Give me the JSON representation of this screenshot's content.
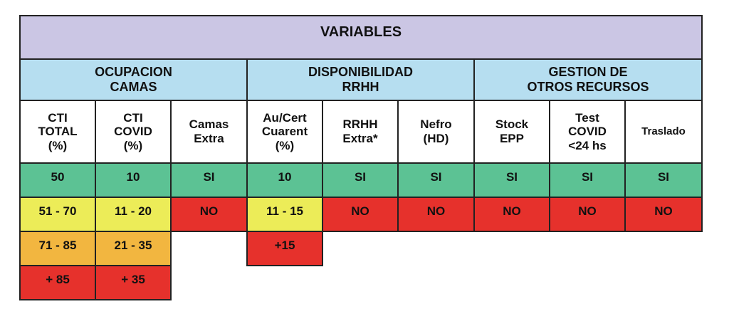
{
  "title": "VARIABLES",
  "groups": {
    "ocupacion": "OCUPACION\nCAMAS",
    "disponibilidad": "DISPONIBILIDAD\nRRHH",
    "gestion": "GESTION DE\nOTROS RECURSOS"
  },
  "columns": {
    "cti_total": "CTI\nTOTAL\n(%)",
    "cti_covid": "CTI\nCOVID\n(%)",
    "camas_extra": "Camas\nExtra",
    "au_cert": "Au/Cert\nCuarent\n(%)",
    "rrhh_extra": "RRHH\nExtra*",
    "nefro": "Nefro\n(HD)",
    "stock_epp": "Stock\nEPP",
    "test_covid": "Test\nCOVID\n<24 hs",
    "traslado": "Traslado"
  },
  "rows": {
    "green": {
      "cti_total": "50",
      "cti_covid": "10",
      "camas_extra": "SI",
      "au_cert": "10",
      "rrhh_extra": "SI",
      "nefro": "SI",
      "stock_epp": "SI",
      "test_covid": "SI",
      "traslado": "SI"
    },
    "yellow_red": {
      "cti_total": "51 - 70",
      "cti_covid": "11 - 20",
      "camas_extra": "NO",
      "au_cert": "11 - 15",
      "rrhh_extra": "NO",
      "nefro": "NO",
      "stock_epp": "NO",
      "test_covid": "NO",
      "traslado": "NO"
    },
    "orange": {
      "cti_total": "71 -  85",
      "cti_covid": "21 - 35",
      "au_cert": "+15"
    },
    "red": {
      "cti_total": "+ 85",
      "cti_covid": "+ 35"
    }
  },
  "colors": {
    "title_bg": "#cbc6e4",
    "group_bg": "#b6def0",
    "green": "#5cc294",
    "yellow": "#ecec58",
    "orange": "#f2b640",
    "red": "#e6312c"
  }
}
